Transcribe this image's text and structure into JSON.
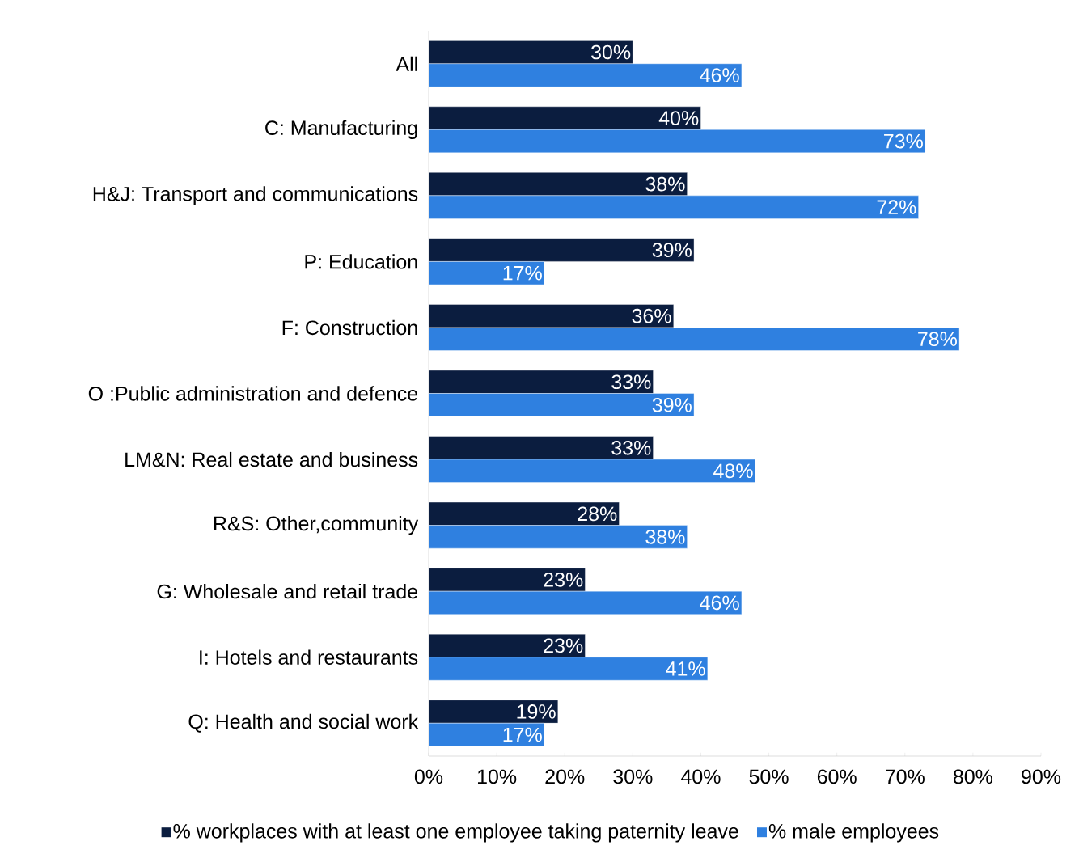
{
  "chart_data": {
    "type": "bar",
    "orientation": "horizontal",
    "categories": [
      "All",
      "C: Manufacturing",
      "H&J: Transport and communications",
      "P: Education",
      "F: Construction",
      "O :Public administration and defence",
      "LM&N: Real estate and business",
      "R&S: Other,community",
      "G: Wholesale and retail trade",
      "I: Hotels and restaurants",
      "Q: Health and social work"
    ],
    "series": [
      {
        "name": "% workplaces with at least one employee taking paternity leave",
        "color": "#0b1d3f",
        "values": [
          30,
          40,
          38,
          39,
          36,
          33,
          33,
          28,
          23,
          23,
          19
        ],
        "value_labels": [
          "30%",
          "40%",
          "38%",
          "39%",
          "36%",
          "33%",
          "33%",
          "28%",
          "23%",
          "23%",
          "19%"
        ]
      },
      {
        "name": "% male employees",
        "color": "#2f80e0",
        "values": [
          46,
          73,
          72,
          17,
          78,
          39,
          48,
          38,
          46,
          41,
          17
        ],
        "value_labels": [
          "46%",
          "73%",
          "72%",
          "17%",
          "78%",
          "39%",
          "48%",
          "38%",
          "46%",
          "41%",
          "17%"
        ]
      }
    ],
    "xlim": [
      0,
      90
    ],
    "xticks": [
      {
        "value": 0,
        "label": "0%"
      },
      {
        "value": 10,
        "label": "10%"
      },
      {
        "value": 20,
        "label": "20%"
      },
      {
        "value": 30,
        "label": "30%"
      },
      {
        "value": 40,
        "label": "40%"
      },
      {
        "value": 50,
        "label": "50%"
      },
      {
        "value": 60,
        "label": "60%"
      },
      {
        "value": 70,
        "label": "70%"
      },
      {
        "value": 80,
        "label": "80%"
      },
      {
        "value": 90,
        "label": "90%"
      }
    ],
    "legend": "bottom"
  }
}
